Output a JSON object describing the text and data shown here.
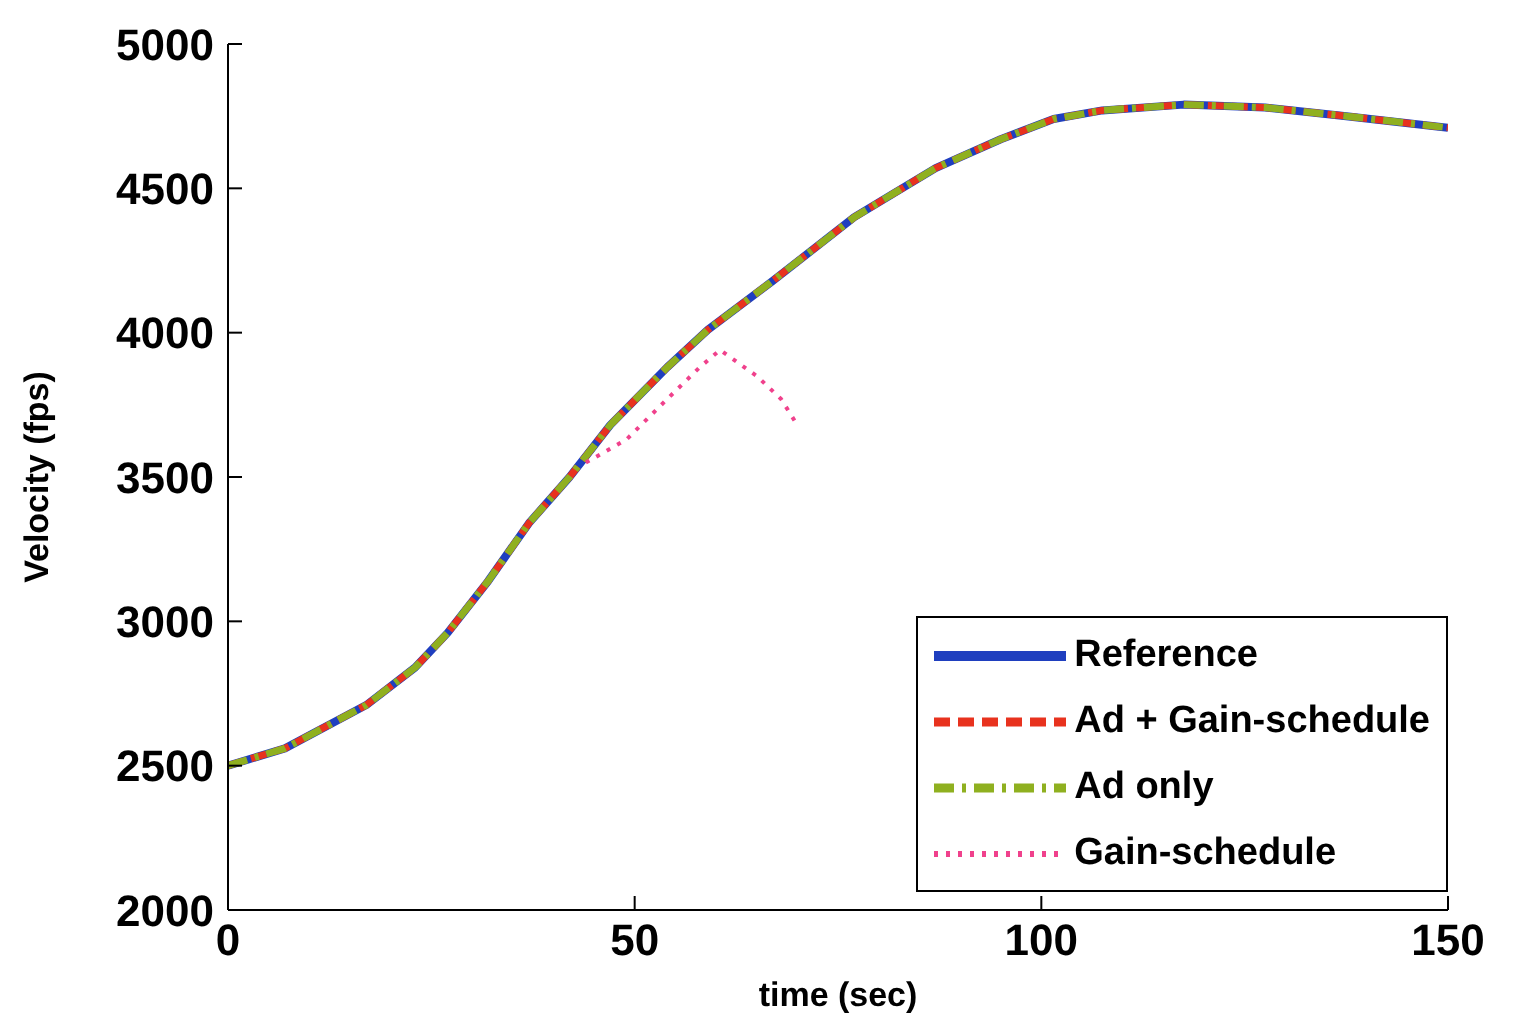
{
  "chart_data": {
    "type": "line",
    "xlabel": "time (sec)",
    "ylabel": "Velocity (fps)",
    "xlim": [
      0,
      150
    ],
    "xticks": [
      0,
      50,
      100,
      150
    ],
    "ylim": [
      2000,
      5000
    ],
    "yticks": [
      2000,
      2500,
      3000,
      3500,
      4000,
      4500,
      5000
    ],
    "legend": "bottom right",
    "marker": "none",
    "x": [
      0,
      7,
      17,
      23,
      27,
      32,
      37,
      42,
      47,
      54,
      59,
      67,
      77,
      87,
      95,
      101.5,
      107.5,
      117.5,
      127.5,
      137.5,
      150
    ],
    "series": [
      {
        "name": "Reference",
        "color": "#1f3fbf",
        "line_style": "solid",
        "values": [
          2500,
          2560,
          2710,
          2840,
          2960,
          3140,
          3340,
          3500,
          3680,
          3880,
          4010,
          4180,
          4400,
          4570,
          4670,
          4740,
          4770,
          4790,
          4780,
          4750,
          4710
        ]
      },
      {
        "name": "Ad + Gain-schedule",
        "color": "#e8321e",
        "line_style": "dashed",
        "values": [
          2500,
          2560,
          2710,
          2840,
          2960,
          3140,
          3340,
          3500,
          3680,
          3880,
          4010,
          4180,
          4400,
          4570,
          4670,
          4740,
          4770,
          4790,
          4780,
          4750,
          4710
        ]
      },
      {
        "name": "Ad only",
        "color": "#8fb020",
        "line_style": "dashdot",
        "values": [
          2500,
          2560,
          2710,
          2840,
          2960,
          3140,
          3340,
          3500,
          3680,
          3880,
          4010,
          4180,
          4400,
          4570,
          4670,
          4740,
          4770,
          4790,
          4780,
          4750,
          4710
        ]
      },
      {
        "name": "Gain-schedule",
        "color": "#f0418c",
        "line_style": "dotted",
        "x": [
          44,
          49,
          54,
          58,
          60.5,
          65,
          68,
          70
        ],
        "values": [
          3550,
          3630,
          3770,
          3880,
          3940,
          3850,
          3770,
          3680
        ]
      }
    ]
  }
}
